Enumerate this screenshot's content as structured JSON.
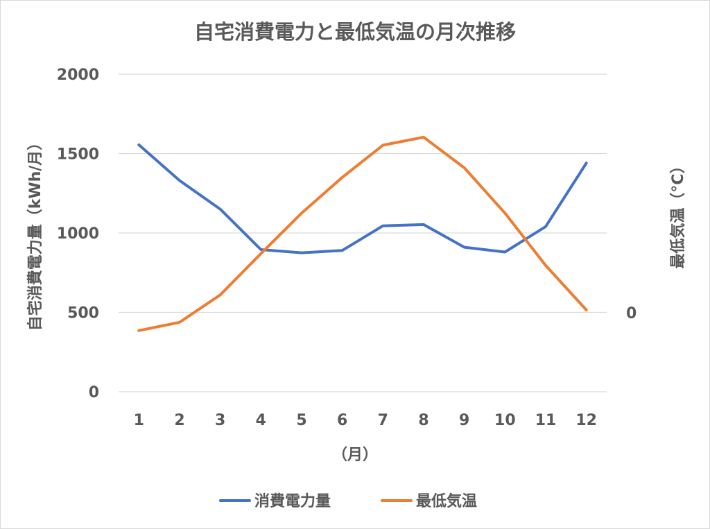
{
  "chart_data": {
    "type": "line",
    "title": "自宅消費電力と最低気温の月次推移",
    "xlabel": "（月）",
    "ylabel": "自宅消費電力量（kWh/月）",
    "y2label": "最低気温（°C）",
    "categories": [
      "1",
      "2",
      "3",
      "4",
      "5",
      "6",
      "7",
      "8",
      "9",
      "10",
      "11",
      "12"
    ],
    "ylim": [
      0,
      2000
    ],
    "yticks": [
      "0",
      "500",
      "1000",
      "1500",
      "2000"
    ],
    "y2ticks": [
      "0"
    ],
    "grid": true,
    "legend_position": "bottom",
    "series": [
      {
        "name": "消費電力量",
        "axis": "primary",
        "color": "#4472c4",
        "values": [
          1555,
          1330,
          1150,
          895,
          875,
          890,
          1045,
          1053,
          910,
          880,
          1040,
          1440
        ]
      },
      {
        "name": "最低気温",
        "axis": "secondary",
        "color": "#ed7d31",
        "values": [
          385,
          437,
          610,
          870,
          1125,
          1350,
          1553,
          1603,
          1410,
          1125,
          795,
          515
        ]
      }
    ]
  }
}
